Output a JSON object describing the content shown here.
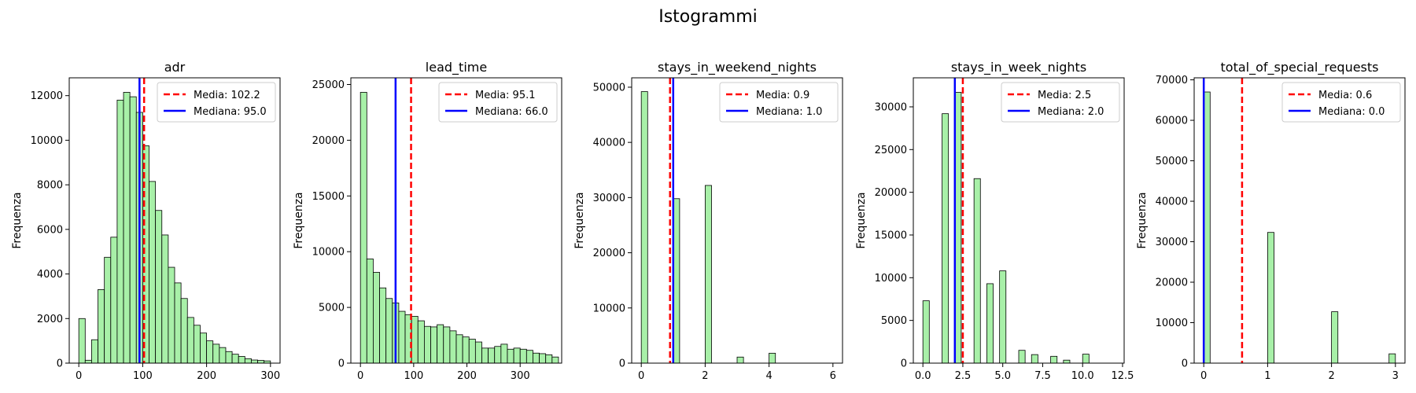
{
  "figure": {
    "title": "Istogrammi"
  },
  "chart_data": [
    {
      "type": "bar",
      "title": "adr",
      "ylabel": "Frequenza",
      "xlim": [
        -15,
        315
      ],
      "ylim": [
        0,
        12800
      ],
      "xticks": [
        0,
        100,
        200,
        300
      ],
      "yticks": [
        0,
        2000,
        4000,
        6000,
        8000,
        10000,
        12000
      ],
      "bin_start": 0,
      "bin_width": 10,
      "values": [
        2000,
        130,
        1050,
        3300,
        4750,
        5650,
        11800,
        12150,
        11950,
        11250,
        9750,
        8150,
        6850,
        5750,
        4300,
        3600,
        2900,
        2050,
        1700,
        1350,
        1000,
        850,
        700,
        520,
        400,
        300,
        200,
        140,
        120,
        100
      ],
      "mean": 102.2,
      "median": 95.0,
      "legend": [
        "Media: 102.2",
        "Mediana: 95.0"
      ],
      "legend_position": "top-right",
      "bar_color": "#a8f0a8"
    },
    {
      "type": "bar",
      "title": "lead_time",
      "ylabel": "Frequenza",
      "xlim": [
        -18,
        378
      ],
      "ylim": [
        0,
        25600
      ],
      "xticks": [
        0,
        100,
        200,
        300
      ],
      "yticks": [
        0,
        5000,
        10000,
        15000,
        20000,
        25000
      ],
      "bin_start": 0,
      "bin_width": 12,
      "values": [
        24300,
        9350,
        8150,
        6750,
        5800,
        5400,
        4650,
        4350,
        4200,
        3800,
        3300,
        3250,
        3450,
        3250,
        2900,
        2550,
        2350,
        2150,
        1900,
        1350,
        1350,
        1500,
        1700,
        1250,
        1350,
        1250,
        1150,
        900,
        850,
        750,
        550
      ],
      "mean": 95.1,
      "median": 66.0,
      "legend": [
        "Media: 95.1",
        "Mediana: 66.0"
      ],
      "legend_position": "top-right",
      "bar_color": "#a8f0a8"
    },
    {
      "type": "bar",
      "title": "stays_in_weekend_nights",
      "ylabel": "Frequenza",
      "xlim": [
        -0.3,
        6.3
      ],
      "ylim": [
        0,
        51700
      ],
      "xticks": [
        0,
        2,
        4,
        6
      ],
      "yticks": [
        0,
        10000,
        20000,
        30000,
        40000,
        50000
      ],
      "bin_start": 0,
      "bin_width": 0.2,
      "values": [
        49200,
        0,
        0,
        0,
        0,
        29800,
        0,
        0,
        0,
        0,
        32200,
        0,
        0,
        0,
        0,
        1100,
        0,
        0,
        0,
        0,
        1800,
        0,
        0,
        0,
        0,
        0,
        0,
        0,
        0,
        0
      ],
      "mean": 0.9,
      "median": 1.0,
      "legend": [
        "Media: 0.9",
        "Mediana: 1.0"
      ],
      "legend_position": "top-right",
      "bar_color": "#a8f0a8"
    },
    {
      "type": "bar",
      "title": "stays_in_week_nights",
      "ylabel": "Frequenza",
      "xlim": [
        -0.6,
        12.6
      ],
      "ylim": [
        0,
        33400
      ],
      "xticks": [
        0.0,
        2.5,
        5.0,
        7.5,
        10.0,
        12.5
      ],
      "ytick_labels_decimals": 1,
      "yticks": [
        0,
        5000,
        10000,
        15000,
        20000,
        25000,
        30000
      ],
      "bin_start": 0,
      "bin_width": 0.4,
      "values": [
        7300,
        0,
        0,
        29200,
        0,
        31700,
        0,
        0,
        21600,
        0,
        9300,
        0,
        10800,
        0,
        0,
        1500,
        0,
        1000,
        0,
        0,
        800,
        0,
        350,
        0,
        0,
        1050,
        0,
        0,
        0,
        0
      ],
      "mean": 2.5,
      "median": 2.0,
      "legend": [
        "Media: 2.5",
        "Mediana: 2.0"
      ],
      "legend_position": "top-right",
      "bar_color": "#a8f0a8"
    },
    {
      "type": "bar",
      "title": "total_of_special_requests",
      "ylabel": "Frequenza",
      "xlim": [
        -0.15,
        3.15
      ],
      "ylim": [
        0,
        70500
      ],
      "xticks": [
        0,
        1,
        2,
        3
      ],
      "yticks": [
        0,
        10000,
        20000,
        30000,
        40000,
        50000,
        60000,
        70000
      ],
      "bin_start": 0,
      "bin_width": 0.1,
      "values": [
        67000,
        0,
        0,
        0,
        0,
        0,
        0,
        0,
        0,
        0,
        32300,
        0,
        0,
        0,
        0,
        0,
        0,
        0,
        0,
        0,
        12700,
        0,
        0,
        0,
        0,
        0,
        0,
        0,
        0,
        2300
      ],
      "mean": 0.6,
      "median": 0.0,
      "legend": [
        "Media: 0.6",
        "Mediana: 0.0"
      ],
      "legend_position": "top-right",
      "bar_color": "#a8f0a8"
    }
  ],
  "colors": {
    "mean": "#ff0000",
    "median": "#0000ff",
    "bar_edge": "#000000"
  }
}
